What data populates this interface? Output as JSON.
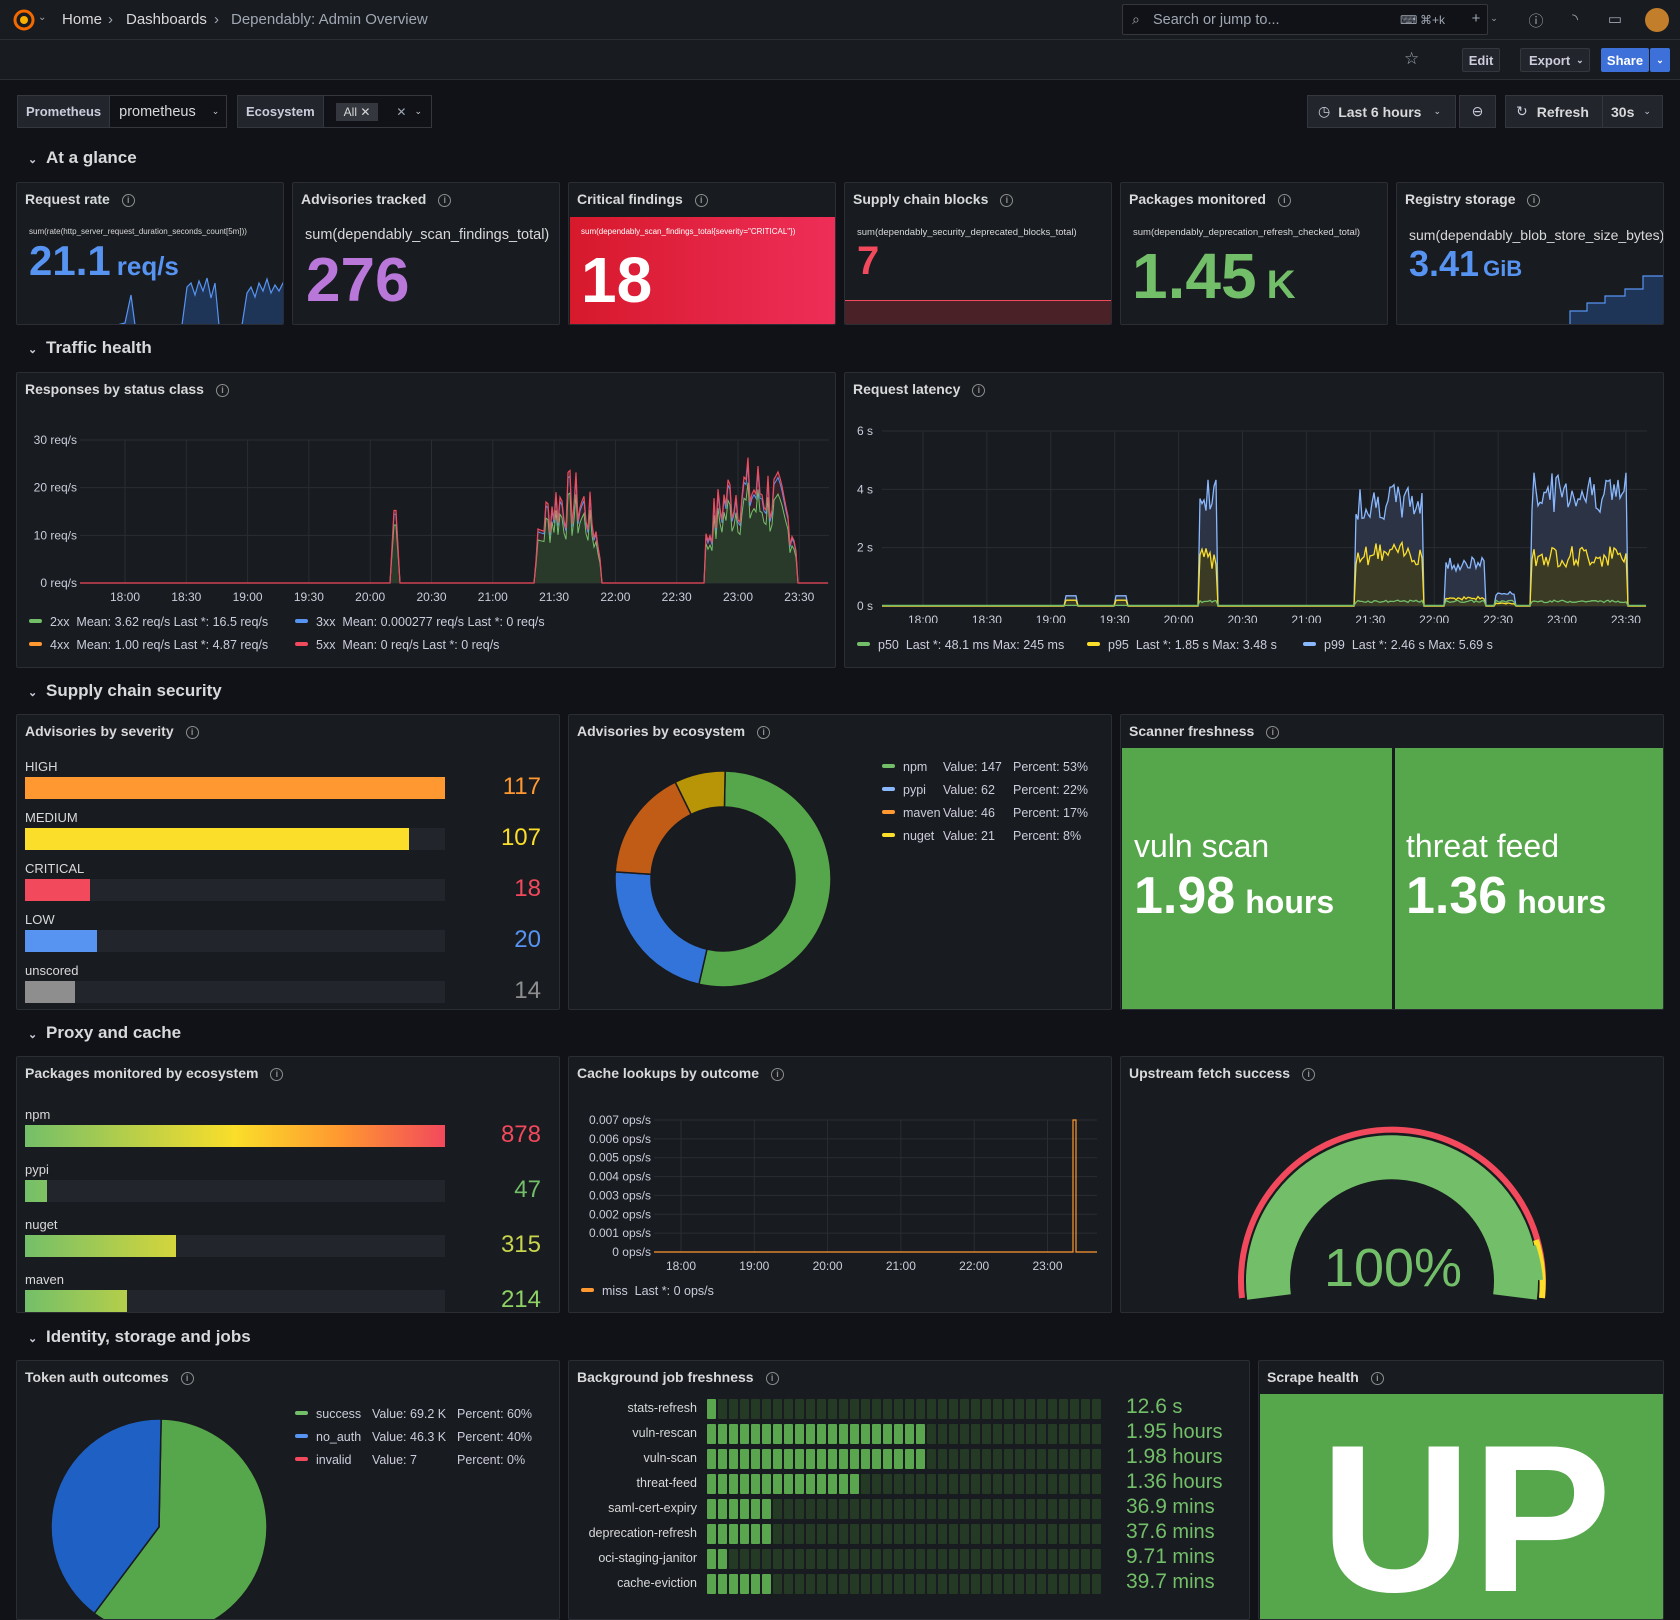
{
  "topbar": {
    "home": "Home",
    "dashboards": "Dashboards",
    "title": "Dependably: Admin Overview",
    "search_placeholder": "Search or jump to...",
    "shortcut": "⌘+k"
  },
  "toolbar": {
    "edit": "Edit",
    "export": "Export",
    "share": "Share"
  },
  "variables": {
    "prometheus_label": "Prometheus",
    "prometheus_value": "prometheus",
    "ecosystem_label": "Ecosystem",
    "ecosystem_value": "All"
  },
  "time": {
    "range": "Last 6 hours",
    "refresh": "Refresh",
    "interval": "30s"
  },
  "rows": {
    "glance": "At a glance",
    "traffic": "Traffic health",
    "supply": "Supply chain security",
    "proxy": "Proxy and cache",
    "identity": "Identity, storage and jobs"
  },
  "stats": {
    "request_rate": {
      "title": "Request rate",
      "query": "sum(rate(http_server_request_duration_seconds_count[5m]))",
      "value": "21.1",
      "unit": "req/s",
      "color": "#5794f2"
    },
    "advisories": {
      "title": "Advisories tracked",
      "query": "sum(dependably_scan_findings_total)",
      "value": "276",
      "color": "#b877d9"
    },
    "critical": {
      "title": "Critical findings",
      "query": "sum(dependably_scan_findings_total{severity=\"CRITICAL\"})",
      "value": "18",
      "color": "#e02f44"
    },
    "blocks": {
      "title": "Supply chain blocks",
      "query": "sum(dependably_security_deprecated_blocks_total)",
      "value": "7",
      "color": "#f2495c"
    },
    "packages": {
      "title": "Packages monitored",
      "query": "sum(dependably_deprecation_refresh_checked_total)",
      "value": "1.45",
      "unit": "K",
      "color": "#73bf69"
    },
    "storage": {
      "title": "Registry storage",
      "query": "sum(dependably_blob_store_size_bytes)",
      "value": "3.41",
      "unit": "GiB",
      "color": "#5794f2"
    }
  },
  "responses": {
    "title": "Responses by status class",
    "legend": [
      {
        "name": "2xx",
        "text": "Mean: 3.62 req/s   Last *: 16.5 req/s",
        "color": "#73bf69"
      },
      {
        "name": "3xx",
        "text": "Mean: 0.000277 req/s   Last *: 0 req/s",
        "color": "#5794f2"
      },
      {
        "name": "4xx",
        "text": "Mean: 1.00 req/s   Last *: 4.87 req/s",
        "color": "#ff9830"
      },
      {
        "name": "5xx",
        "text": "Mean: 0 req/s   Last *: 0 req/s",
        "color": "#f2495c"
      }
    ]
  },
  "latency": {
    "title": "Request latency",
    "legend": [
      {
        "name": "p50",
        "text": "Last *: 48.1 ms   Max: 245 ms",
        "color": "#73bf69"
      },
      {
        "name": "p95",
        "text": "Last *: 1.85 s   Max: 3.48 s",
        "color": "#fade2a"
      },
      {
        "name": "p99",
        "text": "Last *: 2.46 s   Max: 5.69 s",
        "color": "#8ab8ff"
      }
    ]
  },
  "severity": {
    "title": "Advisories by severity"
  },
  "ecosystem_donut": {
    "title": "Advisories by ecosystem",
    "legend": [
      {
        "name": "npm",
        "value": "Value: 147",
        "percent": "Percent: 53%",
        "color": "#73bf69"
      },
      {
        "name": "pypi",
        "value": "Value: 62",
        "percent": "Percent: 22%",
        "color": "#8ab8ff"
      },
      {
        "name": "maven",
        "value": "Value: 46",
        "percent": "Percent: 17%",
        "color": "#ff9830"
      },
      {
        "name": "nuget",
        "value": "Value: 21",
        "percent": "Percent: 8%",
        "color": "#fade2a"
      }
    ]
  },
  "freshness": {
    "title": "Scanner freshness",
    "items": [
      {
        "name": "vuln scan",
        "value": "1.98",
        "unit": "hours"
      },
      {
        "name": "threat feed",
        "value": "1.36",
        "unit": "hours"
      }
    ]
  },
  "pkg_eco": {
    "title": "Packages monitored by ecosystem"
  },
  "cache": {
    "title": "Cache lookups by outcome",
    "legend": {
      "name": "miss",
      "text": "Last *: 0 ops/s",
      "color": "#ff9830"
    }
  },
  "upstream": {
    "title": "Upstream fetch success",
    "value": "100%"
  },
  "token": {
    "title": "Token auth outcomes",
    "legend": [
      {
        "name": "success",
        "value": "Value: 69.2 K",
        "percent": "Percent: 60%",
        "color": "#73bf69"
      },
      {
        "name": "no_auth",
        "value": "Value: 46.3 K",
        "percent": "Percent: 40%",
        "color": "#5794f2"
      },
      {
        "name": "invalid",
        "value": "Value: 7",
        "percent": "Percent: 0%",
        "color": "#f2495c"
      }
    ]
  },
  "jobs": {
    "title": "Background job freshness",
    "items": [
      {
        "name": "stats-refresh",
        "value": "12.6",
        "unit": "s",
        "fraction": 0.04
      },
      {
        "name": "vuln-rescan",
        "value": "1.95",
        "unit": "hours",
        "fraction": 0.55
      },
      {
        "name": "vuln-scan",
        "value": "1.98",
        "unit": "hours",
        "fraction": 0.55
      },
      {
        "name": "threat-feed",
        "value": "1.36",
        "unit": "hours",
        "fraction": 0.39
      },
      {
        "name": "saml-cert-expiry",
        "value": "36.9",
        "unit": "mins",
        "fraction": 0.18
      },
      {
        "name": "deprecation-refresh",
        "value": "37.6",
        "unit": "mins",
        "fraction": 0.18
      },
      {
        "name": "oci-staging-janitor",
        "value": "9.71",
        "unit": "mins",
        "fraction": 0.06
      },
      {
        "name": "cache-eviction",
        "value": "39.7",
        "unit": "mins",
        "fraction": 0.18
      }
    ]
  },
  "scrape": {
    "title": "Scrape health",
    "value": "UP"
  },
  "chart_data": [
    {
      "type": "bar",
      "title": "Advisories by severity",
      "categories": [
        "HIGH",
        "MEDIUM",
        "CRITICAL",
        "LOW",
        "unscored"
      ],
      "values": [
        117,
        107,
        18,
        20,
        14
      ],
      "colors": [
        "#ff9830",
        "#fade2a",
        "#f2495c",
        "#5794f2",
        "#8e8e8e"
      ],
      "max": 117
    },
    {
      "type": "bar",
      "title": "Packages monitored by ecosystem",
      "categories": [
        "npm",
        "pypi",
        "nuget",
        "maven"
      ],
      "values": [
        878,
        47,
        315,
        214
      ],
      "colors": [
        "#f2495c",
        "#73bf69",
        "#c8d44e",
        "#8ed164"
      ],
      "max": 878
    },
    {
      "type": "pie",
      "title": "Advisories by ecosystem",
      "categories": [
        "npm",
        "pypi",
        "maven",
        "nuget"
      ],
      "values": [
        147,
        62,
        46,
        21
      ]
    },
    {
      "type": "pie",
      "title": "Token auth outcomes",
      "categories": [
        "success",
        "no_auth",
        "invalid"
      ],
      "values": [
        69200,
        46300,
        7
      ]
    },
    {
      "type": "line",
      "title": "Responses by status class",
      "x": [
        "18:00",
        "18:30",
        "19:00",
        "19:30",
        "20:00",
        "20:30",
        "21:00",
        "21:30",
        "22:00",
        "22:30",
        "23:00",
        "23:30"
      ],
      "yticks": [
        "30 req/s",
        "20 req/s",
        "10 req/s",
        "0 req/s"
      ],
      "ylim": [
        0,
        30
      ]
    },
    {
      "type": "line",
      "title": "Request latency",
      "x": [
        "18:00",
        "18:30",
        "19:00",
        "19:30",
        "20:00",
        "20:30",
        "21:00",
        "21:30",
        "22:00",
        "22:30",
        "23:00",
        "23:30"
      ],
      "yticks": [
        "6 s",
        "4 s",
        "2 s",
        "0 s"
      ],
      "ylim": [
        0,
        6
      ]
    },
    {
      "type": "line",
      "title": "Cache lookups by outcome",
      "x": [
        "18:00",
        "19:00",
        "20:00",
        "21:00",
        "22:00",
        "23:00"
      ],
      "yticks": [
        "0.007 ops/s",
        "0.006 ops/s",
        "0.005 ops/s",
        "0.004 ops/s",
        "0.003 ops/s",
        "0.002 ops/s",
        "0.001 ops/s",
        "0 ops/s"
      ],
      "ylim": [
        0,
        0.007
      ]
    }
  ]
}
